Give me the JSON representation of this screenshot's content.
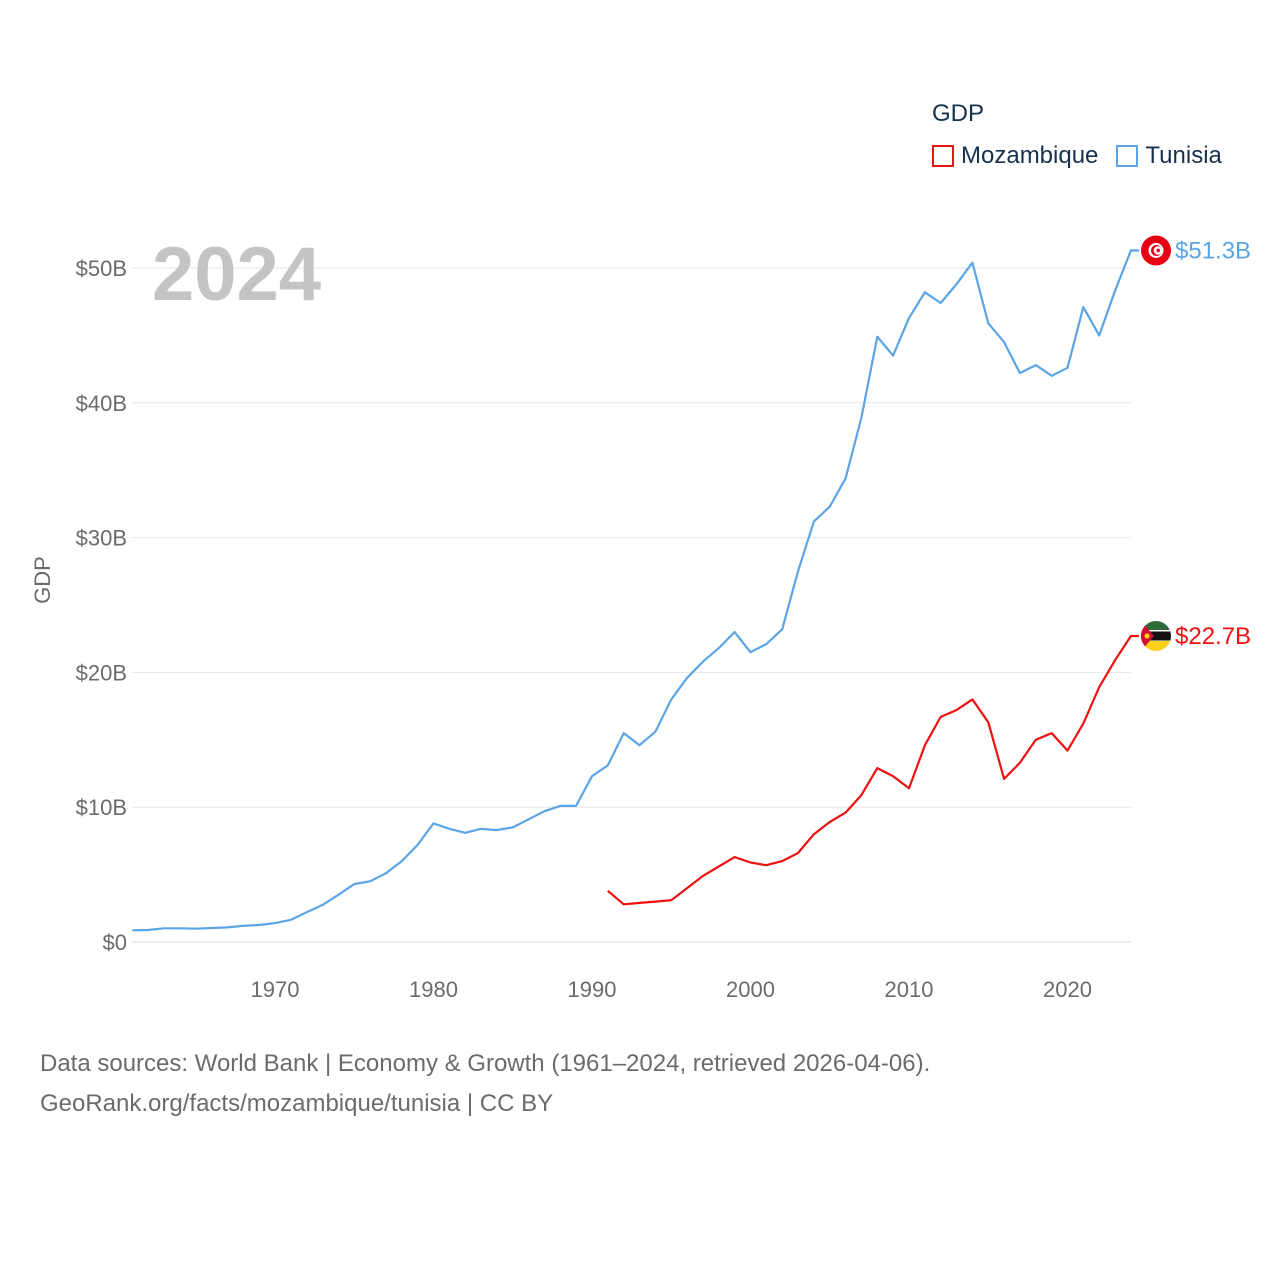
{
  "legend": {
    "title": "GDP",
    "items": [
      {
        "name": "Mozambique",
        "color": "#ee1111"
      },
      {
        "name": "Tunisia",
        "color": "#5ba4e5"
      }
    ]
  },
  "footer": {
    "line1": "Data sources: World Bank | Economy & Growth (1961–2024, retrieved 2026-04-06).",
    "line2": "GeoRank.org/facts/mozambique/tunisia | CC BY"
  },
  "chart_data": {
    "type": "line",
    "title": "GDP",
    "year_label": "2024",
    "ylabel": "GDP",
    "xlabel": "",
    "xlim": [
      1961,
      2024
    ],
    "ylim": [
      0,
      52
    ],
    "yunit": "billion USD",
    "yticks": [
      0,
      10,
      20,
      30,
      40,
      50
    ],
    "ytick_labels": [
      "$0",
      "$10B",
      "$20B",
      "$30B",
      "$40B",
      "$50B"
    ],
    "xticks": [
      1970,
      1980,
      1990,
      2000,
      2010,
      2020
    ],
    "xtick_labels": [
      "1970",
      "1980",
      "1990",
      "2000",
      "2010",
      "2020"
    ],
    "grid": true,
    "legend_position": "top-right",
    "series": [
      {
        "name": "Tunisia",
        "color": "#5ba4e5",
        "end_label": "$51.3B",
        "flag": "tunisia",
        "x": [
          1961,
          1962,
          1963,
          1964,
          1965,
          1966,
          1967,
          1968,
          1969,
          1970,
          1971,
          1972,
          1973,
          1974,
          1975,
          1976,
          1977,
          1978,
          1979,
          1980,
          1981,
          1982,
          1983,
          1984,
          1985,
          1986,
          1987,
          1988,
          1989,
          1990,
          1991,
          1992,
          1993,
          1994,
          1995,
          1996,
          1997,
          1998,
          1999,
          2000,
          2001,
          2002,
          2003,
          2004,
          2005,
          2006,
          2007,
          2008,
          2009,
          2010,
          2011,
          2012,
          2013,
          2014,
          2015,
          2016,
          2017,
          2018,
          2019,
          2020,
          2021,
          2022,
          2023,
          2024
        ],
        "values": [
          0.87,
          0.89,
          1.02,
          1.02,
          0.99,
          1.04,
          1.08,
          1.2,
          1.26,
          1.4,
          1.65,
          2.2,
          2.75,
          3.5,
          4.3,
          4.5,
          5.1,
          6.0,
          7.2,
          8.8,
          8.4,
          8.1,
          8.4,
          8.3,
          8.5,
          9.1,
          9.7,
          10.1,
          10.1,
          12.3,
          13.1,
          15.5,
          14.6,
          15.6,
          18.0,
          19.6,
          20.8,
          21.8,
          23.0,
          21.5,
          22.1,
          23.2,
          27.5,
          31.2,
          32.3,
          34.4,
          38.9,
          44.9,
          43.5,
          46.3,
          48.2,
          47.4,
          48.8,
          50.4,
          45.9,
          44.5,
          42.2,
          42.8,
          42.0,
          42.6,
          47.1,
          45.0,
          48.3,
          51.3
        ]
      },
      {
        "name": "Mozambique",
        "color": "#ee1111",
        "end_label": "$22.7B",
        "flag": "mozambique",
        "x": [
          1991,
          1992,
          1993,
          1994,
          1995,
          1996,
          1997,
          1998,
          1999,
          2000,
          2001,
          2002,
          2003,
          2004,
          2005,
          2006,
          2007,
          2008,
          2009,
          2010,
          2011,
          2012,
          2013,
          2014,
          2015,
          2016,
          2017,
          2018,
          2019,
          2020,
          2021,
          2022,
          2023,
          2024
        ],
        "values": [
          3.8,
          2.8,
          2.9,
          3.0,
          3.1,
          4.0,
          4.9,
          5.6,
          6.3,
          5.9,
          5.7,
          6.0,
          6.6,
          8.0,
          8.9,
          9.6,
          10.9,
          12.9,
          12.3,
          11.4,
          14.6,
          16.7,
          17.2,
          18.0,
          16.3,
          12.1,
          13.3,
          15.0,
          15.5,
          14.2,
          16.2,
          18.9,
          20.9,
          22.7
        ]
      }
    ]
  }
}
